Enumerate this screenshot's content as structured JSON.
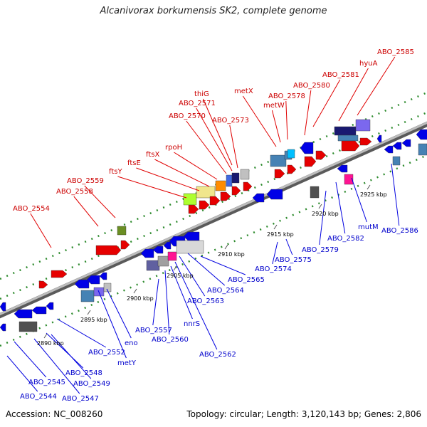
{
  "title": "Alcanivorax borkumensis SK2, complete genome",
  "footer": {
    "accession": "Accession: NC_008260",
    "stats": "Topology: circular; Length: 3,120,143 bp; Genes: 2,806"
  },
  "colors": {
    "backbone": "#8c8c8c",
    "forward_gene": "#e60000",
    "reverse_gene": "#0000e6",
    "forward_label": "#cc0000",
    "reverse_label": "#0000cc",
    "dotted_guide": "#2e8b2e"
  },
  "ticks": [
    "2890 kbp",
    "2895 kbp",
    "2900 kbp",
    "2905 kbp",
    "2910 kbp",
    "2915 kbp",
    "2920 kbp",
    "2925 kbp"
  ],
  "forward_labels": [
    "ABO_2554",
    "ABO_2558",
    "ABO_2559",
    "ftsY",
    "ftsE",
    "ftsX",
    "rpoH",
    "ABO_2570",
    "ABO_2571",
    "thiG",
    "ABO_2573",
    "metX",
    "metW",
    "ABO_2578",
    "ABO_2580",
    "ABO_2581",
    "hyuA",
    "ABO_2585"
  ],
  "reverse_labels": [
    "ABO_2544",
    "ABO_2545",
    "ABO_2547",
    "ABO_2548",
    "ABO_2549",
    "ABO_2552",
    "metY",
    "eno",
    "ABO_2557",
    "ABO_2560",
    "nnrS",
    "ABO_2562",
    "ABO_2563",
    "ABO_2564",
    "ABO_2565",
    "ABO_2574",
    "ABO_2575",
    "ABO_2579",
    "ABO_2582",
    "mutM",
    "ABO_2586"
  ]
}
